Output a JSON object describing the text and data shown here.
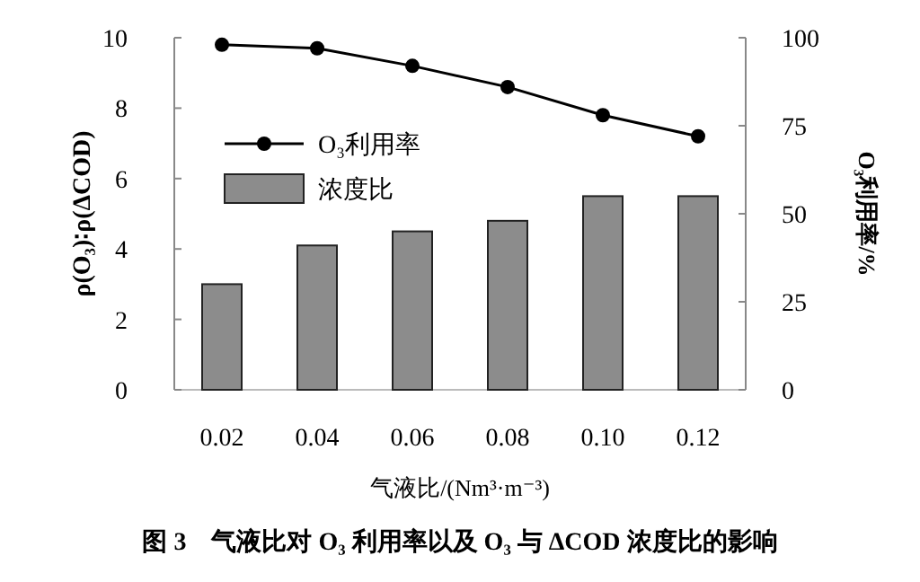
{
  "chart_data": {
    "type": "bar",
    "title": "图 3　气液比对 O₃ 利用率以及 O₃ 与 ΔCOD 浓度比的影响",
    "xlabel": "气液比/(Nm³·m⁻³)",
    "ylabel": "ρ(O₃)∶ρ(ΔCOD)",
    "y2label": "O₃利用率/%",
    "categories": [
      "0.02",
      "0.04",
      "0.06",
      "0.08",
      "0.10",
      "0.12"
    ],
    "series": [
      {
        "name": "O₃利用率",
        "type": "line",
        "axis": "y2",
        "color": "#000000",
        "marker": "circle",
        "values": [
          98,
          97,
          92,
          86,
          78,
          72
        ]
      },
      {
        "name": "浓度比",
        "color": "#8c8c8c",
        "values": [
          3.0,
          4.1,
          4.5,
          4.8,
          5.5,
          5.5
        ]
      }
    ],
    "ylim": [
      0,
      10
    ],
    "yticks": [
      0,
      2,
      4,
      6,
      8,
      10
    ],
    "y2lim": [
      0,
      100
    ],
    "y2ticks": [
      0,
      25,
      50,
      75,
      100
    ],
    "grid": false,
    "legend": "left"
  }
}
